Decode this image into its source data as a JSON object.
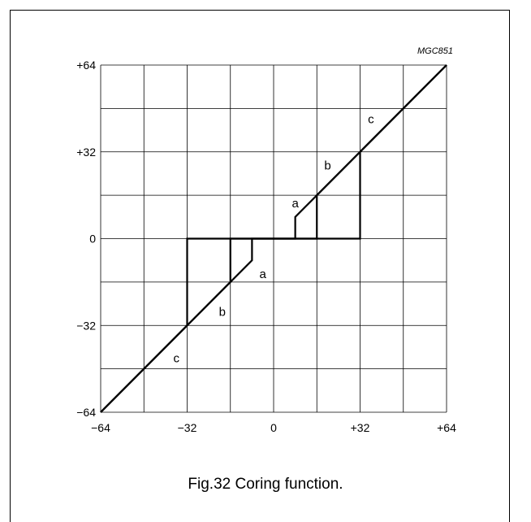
{
  "figure_code": "MGC851",
  "caption": "Fig.32  Coring function.",
  "chart_data": {
    "type": "line",
    "title": "",
    "xlabel": "",
    "ylabel": "",
    "xlim": [
      -64,
      64
    ],
    "ylim": [
      -64,
      64
    ],
    "grid": true,
    "x_ticks": [
      -64,
      -32,
      0,
      32,
      64
    ],
    "x_tick_labels": [
      "−64",
      "−32",
      "0",
      "+32",
      "+64"
    ],
    "y_ticks": [
      -64,
      -32,
      0,
      32,
      64
    ],
    "y_tick_labels": [
      "−64",
      "−32",
      "0",
      "+32",
      "+64"
    ],
    "series": [
      {
        "label": "a",
        "points": [
          [
            -64,
            -64
          ],
          [
            -8,
            -8
          ],
          [
            -8,
            0
          ],
          [
            8,
            0
          ],
          [
            8,
            8
          ],
          [
            64,
            64
          ]
        ]
      },
      {
        "label": "b",
        "points": [
          [
            -64,
            -64
          ],
          [
            -16,
            -16
          ],
          [
            -16,
            0
          ],
          [
            16,
            0
          ],
          [
            16,
            16
          ],
          [
            64,
            64
          ]
        ]
      },
      {
        "label": "c",
        "points": [
          [
            -64,
            -64
          ],
          [
            -32,
            -32
          ],
          [
            -32,
            0
          ],
          [
            32,
            0
          ],
          [
            32,
            32
          ],
          [
            64,
            64
          ]
        ]
      }
    ],
    "curve_labels": [
      {
        "text": "a",
        "x": 8,
        "y": 13
      },
      {
        "text": "b",
        "x": 20,
        "y": 27
      },
      {
        "text": "c",
        "x": 36,
        "y": 44
      },
      {
        "text": "a",
        "x": -4,
        "y": -13
      },
      {
        "text": "b",
        "x": -19,
        "y": -27
      },
      {
        "text": "c",
        "x": -36,
        "y": -44
      }
    ]
  }
}
